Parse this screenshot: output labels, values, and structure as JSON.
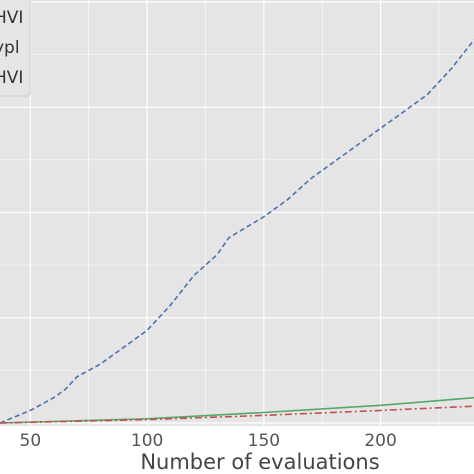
{
  "chart_data": {
    "type": "line",
    "title": "",
    "xlabel": "Number of evaluations",
    "ylabel": "",
    "xlim": [
      37,
      240
    ],
    "ylim": [
      0,
      100
    ],
    "x_ticks": [
      50,
      100,
      150,
      200
    ],
    "grid": true,
    "legend_placement": "top-left",
    "legend_entries": [
      "HVI",
      "ypl",
      "HVI"
    ],
    "series": [
      {
        "name": "HVI",
        "color": "#4c72b0",
        "style": "dashed",
        "x": [
          37,
          50,
          60,
          65,
          70,
          80,
          85,
          90,
          100,
          110,
          120,
          130,
          135,
          150,
          160,
          170,
          180,
          190,
          200,
          210,
          220,
          230,
          240
        ],
        "y": [
          0,
          3,
          6,
          8,
          11,
          14,
          16,
          18,
          22,
          28,
          35,
          40,
          44,
          49,
          53,
          58,
          62,
          66,
          70,
          74,
          78,
          84,
          91
        ]
      },
      {
        "name": "ypl",
        "color": "#55a868",
        "style": "solid",
        "x": [
          37,
          100,
          150,
          200,
          240
        ],
        "y": [
          0,
          1,
          2.5,
          4.2,
          6
        ]
      },
      {
        "name": "HVI",
        "color": "#c44e52",
        "style": "dashdot",
        "x": [
          37,
          100,
          150,
          200,
          240
        ],
        "y": [
          0,
          0.8,
          1.8,
          3,
          4
        ]
      }
    ]
  }
}
